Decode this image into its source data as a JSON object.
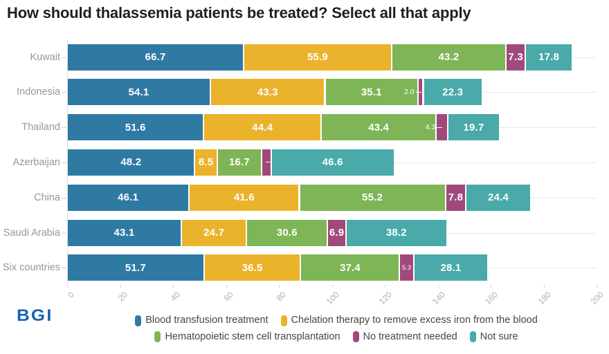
{
  "title": "How should thalassemia patients be treated? Select all that apply",
  "logo": {
    "text": "BGI",
    "color": "#1565b0"
  },
  "chart_data": {
    "type": "bar",
    "variant": "horizontal-stacked",
    "title": "How should thalassemia patients be treated? Select all that apply",
    "categories": [
      "Kuwait",
      "Indonesia",
      "Thailand",
      "Azerbaijan",
      "China",
      "Saudi Arabia",
      "Six countries"
    ],
    "series": [
      {
        "name": "Blood transfusion treatment",
        "color": "#2f7aa3",
        "values": [
          66.7,
          54.1,
          51.6,
          48.2,
          46.1,
          43.1,
          51.7
        ]
      },
      {
        "name": "Chelation therapy to remove excess iron from the blood",
        "color": "#ebb22c",
        "values": [
          55.9,
          43.3,
          44.4,
          8.5,
          41.6,
          24.7,
          36.5
        ]
      },
      {
        "name": "Hematopoietic stem cell transplantation",
        "color": "#7eb556",
        "values": [
          43.2,
          35.1,
          43.4,
          16.7,
          55.2,
          30.6,
          37.4
        ]
      },
      {
        "name": "No treatment needed",
        "color": "#a2497b",
        "values": [
          7.3,
          2.0,
          4.3,
          3.6,
          7.8,
          6.9,
          5.3
        ]
      },
      {
        "name": "Not sure",
        "color": "#49aaa9",
        "values": [
          17.8,
          22.3,
          19.7,
          46.6,
          24.4,
          38.2,
          28.1
        ]
      }
    ],
    "xlim": [
      0,
      200
    ],
    "x_ticks": [
      0,
      20,
      40,
      60,
      80,
      100,
      120,
      140,
      160,
      180,
      200
    ],
    "grid": "horizontal category gridlines, light gray",
    "legend_position": "bottom",
    "legend_rows": [
      [
        0,
        1
      ],
      [
        2,
        3,
        4
      ]
    ],
    "value_label_format": "one-decimal",
    "narrow_label_modes": {
      "1-3": "leader-left",
      "2-3": "leader-left",
      "3-3": "leader-right",
      "6-3": "tiny-inside"
    }
  }
}
